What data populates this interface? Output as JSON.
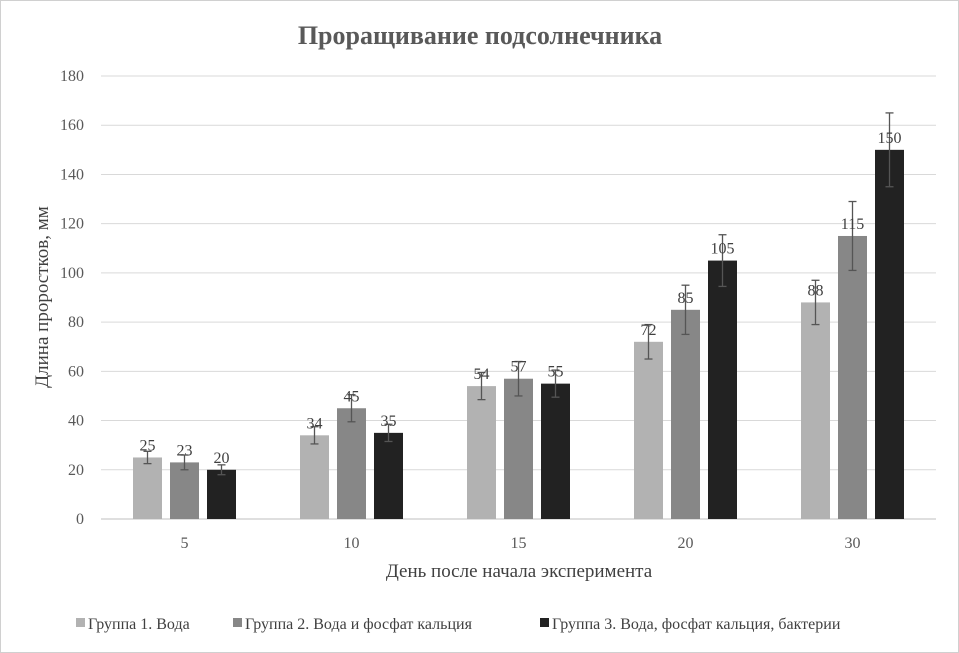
{
  "chart_data": {
    "type": "bar",
    "title": "Проращивание подсолнечника",
    "xlabel": "День после начала эксперимента",
    "ylabel": "Длина проростков, мм",
    "ylim": [
      0,
      180
    ],
    "yticks": [
      0,
      20,
      40,
      60,
      80,
      100,
      120,
      140,
      160,
      180
    ],
    "categories": [
      "5",
      "10",
      "15",
      "20",
      "30"
    ],
    "series": [
      {
        "name": "Группа 1. Вода",
        "color": "#b2b2b2",
        "values": [
          25,
          34,
          54,
          72,
          88
        ],
        "errors": [
          2.5,
          3.5,
          5.5,
          7,
          9
        ]
      },
      {
        "name": "Группа 2. Вода и фосфат кальция",
        "color": "#878787",
        "values": [
          23,
          45,
          57,
          85,
          115
        ],
        "errors": [
          3,
          5.5,
          7,
          10,
          14
        ]
      },
      {
        "name": "Группа 3. Вода, фосфат кальция, бактерии",
        "color": "#222222",
        "values": [
          20,
          35,
          55,
          105,
          150
        ],
        "errors": [
          2,
          3.5,
          5.5,
          10.5,
          15
        ]
      }
    ],
    "grid": true,
    "legend": "bottom"
  }
}
